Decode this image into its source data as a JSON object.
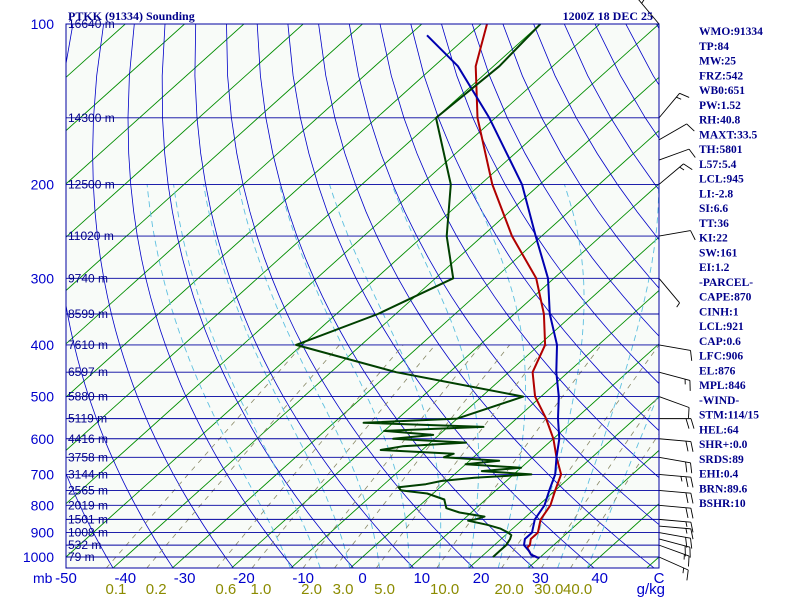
{
  "header": {
    "station": "PTKK (91334) Sounding",
    "time": "1200Z 18 DEC 25"
  },
  "chart_data": {
    "type": "line",
    "title": "PTKK (91334) Sounding",
    "xlabel_unit": "mb",
    "mixing_ratio_unit": "g/kg",
    "pressure_ticks": [
      "100",
      "200",
      "300",
      "400",
      "500",
      "600",
      "700",
      "800",
      "900",
      "1000"
    ],
    "temperature_ticks": [
      "-50",
      "-40",
      "-30",
      "-20",
      "-10",
      "0",
      "10",
      "20",
      "30",
      "40",
      "C"
    ],
    "mixing_ratio_ticks": [
      "0.1",
      "0.2",
      "0.6",
      "1.0",
      "2.0",
      "3.0",
      "5.0",
      "10.0",
      "20.0",
      "30.0",
      "40.0"
    ],
    "height_labels": [
      {
        "p": 100,
        "text": "16640 m"
      },
      {
        "p": 150,
        "text": "14300 m"
      },
      {
        "p": 200,
        "text": "12500 m"
      },
      {
        "p": 250,
        "text": "11020 m"
      },
      {
        "p": 300,
        "text": "9740 m"
      },
      {
        "p": 350,
        "text": "8599 m"
      },
      {
        "p": 400,
        "text": "7610 m"
      },
      {
        "p": 450,
        "text": "6597 m"
      },
      {
        "p": 500,
        "text": "5880 m"
      },
      {
        "p": 550,
        "text": "5119 m"
      },
      {
        "p": 600,
        "text": "4416 m"
      },
      {
        "p": 650,
        "text": "3758 m"
      },
      {
        "p": 700,
        "text": "3144 m"
      },
      {
        "p": 750,
        "text": "2565 m"
      },
      {
        "p": 800,
        "text": "2019 m"
      },
      {
        "p": 850,
        "text": "1501 m"
      },
      {
        "p": 900,
        "text": "1008 m"
      },
      {
        "p": 950,
        "text": "532 m"
      },
      {
        "p": 1000,
        "text": "79 m"
      }
    ],
    "x_range_c_at_1000mb": [
      -50,
      50
    ],
    "y_range_mb": [
      100,
      1000
    ],
    "series": [
      {
        "name": "temperature",
        "color": "#b00000",
        "points": [
          [
            1005,
            30
          ],
          [
            990,
            28
          ],
          [
            975,
            27
          ],
          [
            960,
            26
          ],
          [
            950,
            26
          ],
          [
            925,
            25
          ],
          [
            900,
            25
          ],
          [
            875,
            24
          ],
          [
            850,
            23
          ],
          [
            800,
            22
          ],
          [
            750,
            20
          ],
          [
            700,
            18
          ],
          [
            650,
            14
          ],
          [
            600,
            10
          ],
          [
            550,
            5
          ],
          [
            500,
            -1
          ],
          [
            450,
            -6
          ],
          [
            400,
            -9
          ],
          [
            350,
            -15
          ],
          [
            300,
            -23
          ],
          [
            250,
            -35
          ],
          [
            200,
            -48
          ],
          [
            150,
            -63
          ],
          [
            120,
            -73
          ],
          [
            100,
            -79
          ]
        ]
      },
      {
        "name": "parcel",
        "color": "#0000b0",
        "points": [
          [
            1005,
            30
          ],
          [
            990,
            28
          ],
          [
            975,
            27
          ],
          [
            950,
            25
          ],
          [
            925,
            24
          ],
          [
            900,
            24
          ],
          [
            850,
            22
          ],
          [
            800,
            21
          ],
          [
            750,
            19
          ],
          [
            700,
            17
          ],
          [
            650,
            14
          ],
          [
            600,
            11
          ],
          [
            550,
            7
          ],
          [
            500,
            3
          ],
          [
            450,
            -2
          ],
          [
            400,
            -7
          ],
          [
            350,
            -14
          ],
          [
            300,
            -21
          ],
          [
            250,
            -31
          ],
          [
            200,
            -43
          ],
          [
            150,
            -61
          ],
          [
            120,
            -76
          ],
          [
            105,
            -87
          ]
        ]
      },
      {
        "name": "dewpoint",
        "color": "#004000",
        "points": [
          [
            1000,
            22
          ],
          [
            975,
            22
          ],
          [
            950,
            22
          ],
          [
            925,
            21.5
          ],
          [
            910,
            21
          ],
          [
            900,
            20
          ],
          [
            885,
            18
          ],
          [
            870,
            15
          ],
          [
            855,
            11
          ],
          [
            850,
            12
          ],
          [
            840,
            13
          ],
          [
            825,
            8
          ],
          [
            810,
            5
          ],
          [
            795,
            4
          ],
          [
            780,
            3
          ],
          [
            770,
            1
          ],
          [
            760,
            -1
          ],
          [
            750,
            -6
          ],
          [
            740,
            -7
          ],
          [
            730,
            -3
          ],
          [
            720,
            -1
          ],
          [
            710,
            4
          ],
          [
            700,
            13
          ],
          [
            690,
            4
          ],
          [
            680,
            10
          ],
          [
            670,
            0
          ],
          [
            660,
            5
          ],
          [
            650,
            -5
          ],
          [
            640,
            -4
          ],
          [
            630,
            -17
          ],
          [
            620,
            -14
          ],
          [
            610,
            -4
          ],
          [
            600,
            -17
          ],
          [
            590,
            -11
          ],
          [
            580,
            -20
          ],
          [
            570,
            -4
          ],
          [
            560,
            -25
          ],
          [
            550,
            -10
          ],
          [
            500,
            -3
          ],
          [
            450,
            -29
          ],
          [
            400,
            -51
          ],
          [
            350,
            -43
          ],
          [
            300,
            -37
          ],
          [
            250,
            -46
          ],
          [
            200,
            -55
          ],
          [
            150,
            -70
          ],
          [
            120,
            -69
          ],
          [
            100,
            -70
          ]
        ]
      }
    ],
    "wind_barbs": [
      {
        "p": 1000,
        "dir": 114,
        "spd": 15
      },
      {
        "p": 950,
        "dir": 110,
        "spd": 15
      },
      {
        "p": 925,
        "dir": 105,
        "spd": 20
      },
      {
        "p": 900,
        "dir": 100,
        "spd": 20
      },
      {
        "p": 875,
        "dir": 95,
        "spd": 15
      },
      {
        "p": 850,
        "dir": 95,
        "spd": 15
      },
      {
        "p": 800,
        "dir": 95,
        "spd": 20
      },
      {
        "p": 750,
        "dir": 95,
        "spd": 20
      },
      {
        "p": 700,
        "dir": 95,
        "spd": 25
      },
      {
        "p": 650,
        "dir": 100,
        "spd": 20
      },
      {
        "p": 600,
        "dir": 95,
        "spd": 20
      },
      {
        "p": 550,
        "dir": 90,
        "spd": 20
      },
      {
        "p": 500,
        "dir": 110,
        "spd": 10
      },
      {
        "p": 450,
        "dir": 105,
        "spd": 15
      },
      {
        "p": 400,
        "dir": 100,
        "spd": 10
      },
      {
        "p": 300,
        "dir": 140,
        "spd": 5
      },
      {
        "p": 250,
        "dir": 80,
        "spd": 10
      },
      {
        "p": 200,
        "dir": 50,
        "spd": 15
      },
      {
        "p": 180,
        "dir": 70,
        "spd": 10
      },
      {
        "p": 165,
        "dir": 60,
        "spd": 10
      },
      {
        "p": 150,
        "dir": 40,
        "spd": 15
      },
      {
        "p": 100,
        "dir": 320,
        "spd": 20
      }
    ],
    "stability_indices": [
      "WMO:91334",
      "TP:84",
      "MW:25",
      "FRZ:542",
      "WB0:651",
      "PW:1.52",
      "RH:40.8",
      "MAXT:33.5",
      "TH:5801",
      "L57:5.4",
      "LCL:945",
      "LI:-2.8",
      "SI:6.6",
      "TT:36",
      "KI:22",
      "SW:161",
      "EI:1.2",
      "-PARCEL-",
      "CAPE:870",
      "CINH:1",
      "LCL:921",
      "CAP:0.6",
      "LFC:906",
      "EL:876",
      "MPL:846",
      "-WIND-",
      "STM:114/15",
      "HEL:64",
      "SHR+:0.0",
      "SRDS:89",
      "EHI:0.4",
      "BRN:89.6",
      "BSHR:10"
    ]
  },
  "colors": {
    "isobar": "#0000a0",
    "dry_adiabat": "#0000c8",
    "isotherm": "#008c00",
    "moist_adiabat": "#5ec0e0",
    "mixing_ratio": "#888866",
    "plot_background": "#f8fbf8"
  }
}
